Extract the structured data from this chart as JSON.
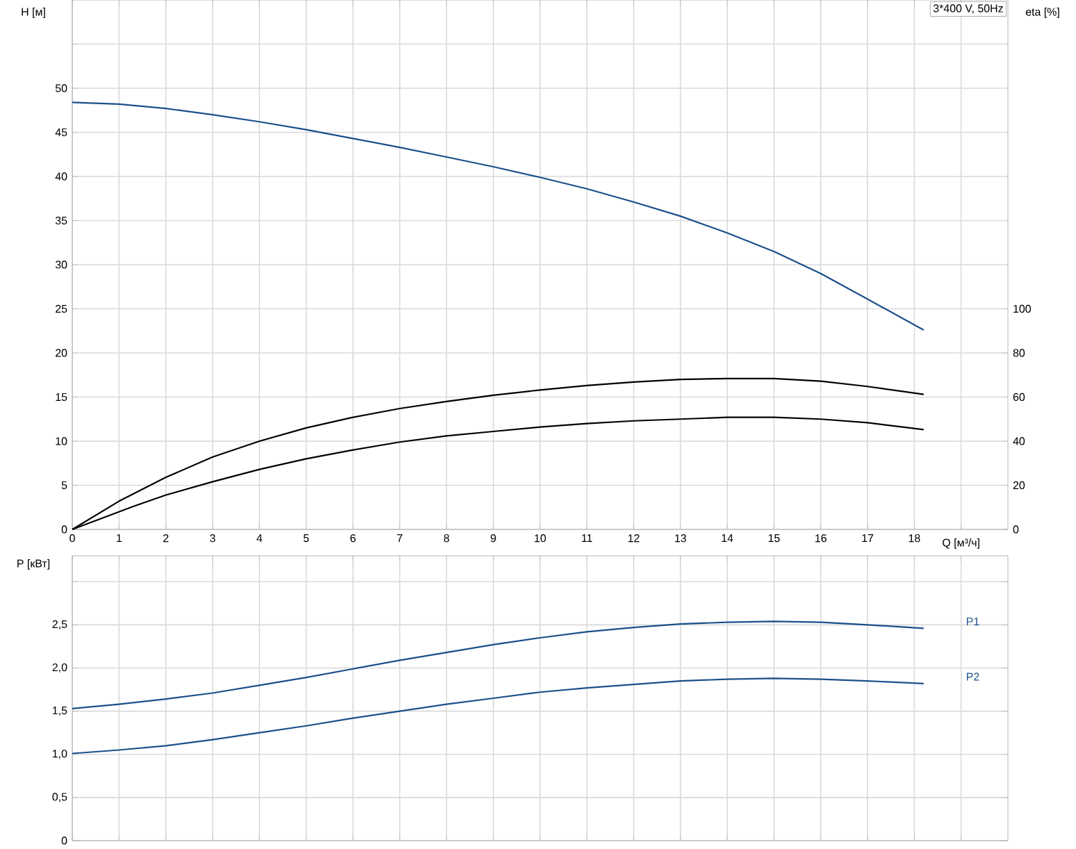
{
  "chart_data": [
    {
      "type": "line",
      "xlabel": "Q [м³/ч]",
      "ylabel": "H [м]",
      "y2label": "eta [%]",
      "annotations": [
        "3*400 V, 50Hz"
      ],
      "xlim": [
        0,
        20
      ],
      "xticks": [
        0,
        1,
        2,
        3,
        4,
        5,
        6,
        7,
        8,
        9,
        10,
        11,
        12,
        13,
        14,
        15,
        16,
        17,
        18,
        {
          "value": 19,
          "label": null
        }
      ],
      "ylim": [
        0,
        60
      ],
      "yticks": [
        0,
        5,
        10,
        15,
        20,
        25,
        30,
        35,
        40,
        45,
        50,
        {
          "value": 55,
          "label": null
        }
      ],
      "y2lim": [
        0,
        240
      ],
      "y2ticks": [
        0,
        20,
        40,
        60,
        80,
        100
      ],
      "grid": true,
      "series": [
        {
          "color": "#1a4f8a",
          "x": [
            0,
            1,
            2,
            3,
            4,
            5,
            6,
            7,
            8,
            9,
            10,
            11,
            12,
            13,
            14,
            15,
            16,
            17,
            18.2
          ],
          "values": [
            48.4,
            48.2,
            47.7,
            47.0,
            46.2,
            45.3,
            44.3,
            43.3,
            42.2,
            41.1,
            39.9,
            38.6,
            37.1,
            35.5,
            33.6,
            31.5,
            29.0,
            26.1,
            22.6
          ]
        },
        {
          "color": "#000000",
          "axis": "y2",
          "x": [
            0,
            1,
            2,
            3,
            4,
            5,
            6,
            7,
            8,
            9,
            10,
            11,
            12,
            13,
            14,
            15,
            16,
            17,
            18.2
          ],
          "values": [
            0,
            12.8,
            23.6,
            32.8,
            40,
            46,
            50.8,
            54.8,
            58,
            60.8,
            63.2,
            65.2,
            66.8,
            68,
            68.4,
            68.4,
            67.2,
            64.8,
            61.2
          ]
        },
        {
          "color": "#000000",
          "axis": "y2",
          "x": [
            0,
            1.3,
            2,
            3,
            4,
            5,
            6,
            7,
            8,
            9,
            10,
            11,
            12,
            13,
            14,
            15,
            16,
            17,
            18.2
          ],
          "values": [
            0,
            10.4,
            15.6,
            21.6,
            27.2,
            32,
            36,
            39.6,
            42.4,
            44.4,
            46.4,
            48,
            49.2,
            50,
            50.8,
            50.8,
            50,
            48.4,
            45.2
          ]
        }
      ]
    },
    {
      "type": "line",
      "ylabel": "P [кВт]",
      "tick_labels": "y",
      "xlim": [
        0,
        20
      ],
      "xticks": [
        0,
        1,
        2,
        3,
        4,
        5,
        6,
        7,
        8,
        9,
        10,
        11,
        12,
        13,
        14,
        15,
        16,
        17,
        18,
        19
      ],
      "ylim": [
        0,
        3.3
      ],
      "yticks": [
        0,
        {
          "value": 0.5,
          "label": "0,5"
        },
        {
          "value": 1.0,
          "label": "1,0"
        },
        {
          "value": 1.5,
          "label": "1,5"
        },
        {
          "value": 2.0,
          "label": "2,0"
        },
        {
          "value": 2.5,
          "label": "2,5"
        },
        {
          "value": 3.0,
          "label": null
        }
      ],
      "grid": true,
      "series": [
        {
          "name": "P1",
          "color": "#1a4f8a",
          "x": [
            0,
            1,
            2,
            3,
            4,
            5,
            6,
            7,
            8,
            9,
            10,
            11,
            12,
            13,
            14,
            15,
            16,
            17,
            18.2
          ],
          "values": [
            1.53,
            1.58,
            1.64,
            1.71,
            1.8,
            1.89,
            1.99,
            2.09,
            2.18,
            2.27,
            2.35,
            2.42,
            2.47,
            2.51,
            2.53,
            2.54,
            2.53,
            2.5,
            2.46
          ]
        },
        {
          "name": "P2",
          "color": "#1a4f8a",
          "x": [
            0,
            1,
            2,
            3,
            4,
            5,
            6,
            7,
            8,
            9,
            10,
            11,
            12,
            13,
            14,
            15,
            16,
            17,
            18.2
          ],
          "values": [
            1.01,
            1.05,
            1.1,
            1.17,
            1.25,
            1.33,
            1.42,
            1.5,
            1.58,
            1.65,
            1.72,
            1.77,
            1.81,
            1.85,
            1.87,
            1.88,
            1.87,
            1.85,
            1.82
          ]
        }
      ]
    }
  ]
}
